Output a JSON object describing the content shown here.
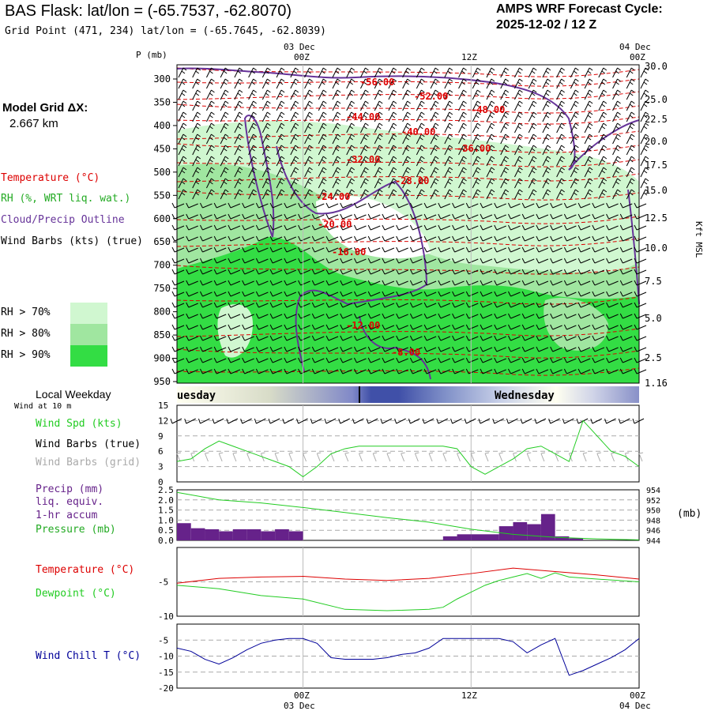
{
  "header": {
    "title": "BAS Flask:  lat/lon = (-65.7537, -62.8070)",
    "grid_point": "Grid Point (471, 234) lat/lon = (-65.7645, -62.8039)",
    "cycle_line1": "AMPS WRF Forecast Cycle:",
    "cycle_line2": "2025-12-02 / 12  Z"
  },
  "left_labels": {
    "model_grid": "Model Grid ΔX:",
    "model_grid_value": "2.667 km",
    "temperature": "Temperature (°C)",
    "rh": "RH (%, WRT liq. wat.)",
    "cloud": "Cloud/Precip Outline",
    "wind_barbs": "Wind Barbs (kts) (true)",
    "rh70": "RH > 70%",
    "rh80": "RH > 80%",
    "rh90": "RH > 90%",
    "local_weekday": "Local Weekday",
    "wind_at": "Wind at 10 m",
    "wind_spd": "Wind Spd (kts)",
    "wind_barbs_true": "Wind Barbs (true)",
    "wind_barbs_grid": "Wind Barbs (grid)",
    "precip": "Precip (mm)",
    "liq_equiv": "liq. equiv.",
    "accum": "1-hr accum",
    "pressure": "Pressure (mb)",
    "temperature2": "Temperature (°C)",
    "dewpoint": "Dewpoint (°C)",
    "wind_chill": "Wind Chill T (°C)"
  },
  "colors": {
    "temperature": "#dd0000",
    "rh": "#22aa22",
    "cloud": "#663399",
    "dewpoint": "#22cc22",
    "wind_chill": "#000099",
    "rh70": "#d0f7d0",
    "rh80": "#a0e6a0",
    "rh90": "#33dd44",
    "precip": "#66228a",
    "grid_gray": "#aaaaaa"
  },
  "time_axis": {
    "top_labels": [
      {
        "l1": "03 Dec",
        "l2": "00Z"
      },
      {
        "l1": "",
        "l2": "12Z"
      },
      {
        "l1": "04 Dec",
        "l2": "00Z"
      }
    ],
    "bottom_labels": [
      {
        "l1": "00Z",
        "l2": "03 Dec"
      },
      {
        "l1": "12Z",
        "l2": ""
      },
      {
        "l1": "00Z",
        "l2": "04 Dec"
      }
    ],
    "day_names": [
      "Tuesday",
      "Wednesday"
    ]
  },
  "chart_data": [
    {
      "type": "heatmap",
      "panel": "cross-section",
      "ylabel_left": "P (mb)",
      "ylabel_right": "Kft MSL",
      "pressure_ticks": [
        300,
        350,
        400,
        450,
        500,
        550,
        600,
        650,
        700,
        750,
        800,
        850,
        900,
        950
      ],
      "height_ticks": [
        "30.0",
        "25.0",
        "22.5",
        "20.0",
        "17.5",
        "15.0",
        "12.5",
        "10.0",
        "7.5",
        "5.0",
        "2.5",
        "1.16"
      ],
      "temperature_contours": [
        "-56.00",
        "-52.00",
        "-48.00",
        "-44.00",
        "-40.00",
        "-36.00",
        "-32.00",
        "-28.00",
        "-24.00",
        "-20.00",
        "-16.00",
        "-12.00",
        "-8.00"
      ],
      "rh_thresholds": [
        70,
        80,
        90
      ]
    },
    {
      "type": "line",
      "panel": "wind",
      "ylim": [
        0,
        15
      ],
      "yticks": [
        0,
        3,
        6,
        9,
        12,
        15
      ],
      "series": [
        {
          "name": "Wind Spd (kts)",
          "x": [
            0,
            1,
            2,
            3,
            4,
            5,
            6,
            7,
            8,
            9,
            10,
            11,
            12,
            13,
            14,
            15,
            16,
            17,
            18,
            19,
            20,
            21,
            22,
            23,
            24,
            25,
            26,
            27,
            28,
            29,
            30,
            31,
            32,
            33
          ],
          "values": [
            4,
            4.5,
            6.5,
            8,
            7,
            6,
            5,
            4,
            3,
            1,
            3,
            5.5,
            6.5,
            7,
            7,
            7,
            7,
            7,
            7,
            7,
            6.5,
            3,
            1.5,
            3,
            4.5,
            6.5,
            7,
            5.5,
            4,
            12,
            9,
            6,
            5,
            3
          ]
        }
      ]
    },
    {
      "type": "bar",
      "panel": "precip",
      "ylim": [
        0,
        2.5
      ],
      "yticks": [
        "0.0",
        "0.5",
        "1.0",
        "1.5",
        "2.0",
        "2.5"
      ],
      "pressure_ticks": [
        944,
        946,
        948,
        950,
        952,
        954
      ],
      "y2label": "(mb)",
      "series": [
        {
          "name": "Precip (mm)",
          "x": [
            0,
            1,
            2,
            3,
            4,
            5,
            6,
            7,
            8,
            19,
            20,
            21,
            22,
            23,
            24,
            25,
            26,
            27,
            28
          ],
          "values": [
            0.85,
            0.6,
            0.55,
            0.45,
            0.55,
            0.55,
            0.45,
            0.55,
            0.45,
            0.2,
            0.3,
            0.3,
            0.3,
            0.7,
            0.9,
            0.8,
            1.3,
            0.2,
            0.1
          ]
        },
        {
          "name": "Pressure (mb)",
          "x": [
            0,
            3,
            6,
            9,
            12,
            15,
            18,
            21,
            24,
            27,
            30,
            33
          ],
          "values": [
            953.5,
            952,
            951.4,
            950.5,
            949.5,
            948.5,
            947.6,
            946.2,
            945.2,
            944.6,
            944.3,
            944.1
          ]
        }
      ]
    },
    {
      "type": "line",
      "panel": "temperature",
      "ylim": [
        -10,
        0
      ],
      "yticks": [
        -5,
        -10
      ],
      "series": [
        {
          "name": "Temperature (°C)",
          "x": [
            0,
            3,
            6,
            9,
            12,
            15,
            18,
            21,
            24,
            27,
            30,
            33
          ],
          "values": [
            -5.2,
            -4.5,
            -4.3,
            -4.2,
            -4.6,
            -4.8,
            -4.5,
            -3.8,
            -3.0,
            -3.5,
            -4.0,
            -4.6
          ]
        },
        {
          "name": "Dewpoint (°C)",
          "x": [
            0,
            3,
            6,
            9,
            12,
            15,
            18,
            19,
            20,
            21,
            22,
            23,
            24,
            25,
            26,
            27,
            28,
            30,
            33
          ],
          "values": [
            -5.5,
            -6.0,
            -7.0,
            -7.5,
            -9.0,
            -9.2,
            -9.0,
            -8.7,
            -7.5,
            -6.5,
            -5.5,
            -4.8,
            -4.3,
            -3.8,
            -4.5,
            -3.7,
            -4.3,
            -4.6,
            -5.0
          ]
        }
      ]
    },
    {
      "type": "line",
      "panel": "wind_chill",
      "ylim": [
        -20,
        0
      ],
      "yticks": [
        -5,
        -10,
        -15,
        -20
      ],
      "series": [
        {
          "name": "Wind Chill T (°C)",
          "x": [
            0,
            1,
            2,
            3,
            4,
            5,
            6,
            7,
            8,
            9,
            10,
            11,
            12,
            13,
            14,
            15,
            16,
            17,
            18,
            19,
            20,
            21,
            22,
            23,
            24,
            25,
            26,
            27,
            28,
            29,
            30,
            31,
            32,
            33
          ],
          "values": [
            -7.5,
            -8.5,
            -11,
            -12.5,
            -10.5,
            -8,
            -6,
            -5,
            -4.5,
            -4.5,
            -6,
            -10.5,
            -11,
            -11,
            -11,
            -10.5,
            -9.5,
            -9,
            -7.5,
            -4.5,
            -4.5,
            -4.5,
            -4.5,
            -4.5,
            -5.5,
            -9,
            -6.5,
            -4.5,
            -16,
            -14.5,
            -12.5,
            -10.5,
            -8,
            -4.5
          ]
        }
      ]
    }
  ]
}
